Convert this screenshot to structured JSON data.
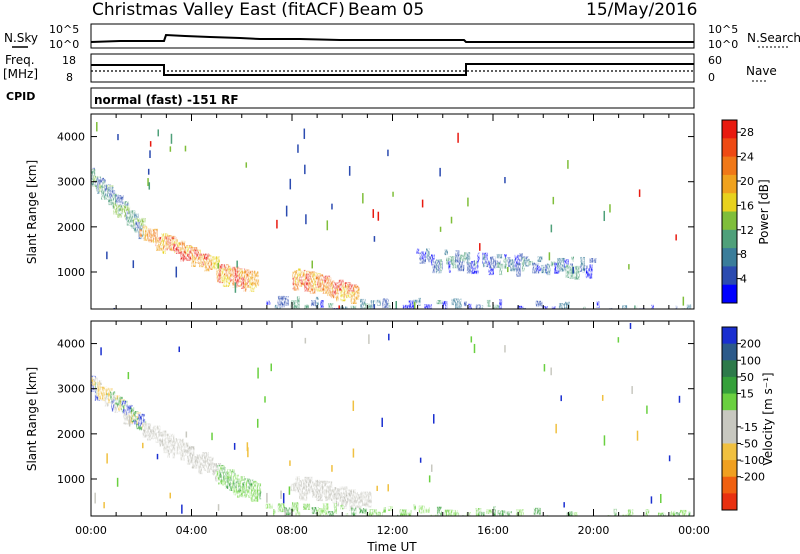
{
  "header": {
    "station": "Christmas Valley East (fitACF)",
    "beam": "Beam 05",
    "date": "15/May/2016"
  },
  "noise_panel": {
    "left_label": "N.Sky",
    "right_label": "N.Search",
    "left_ticks": [
      "10^5",
      "10^0"
    ],
    "right_ticks": [
      "10^5",
      "10^0"
    ]
  },
  "freq_panel": {
    "left_label_1": "Freq.",
    "left_label_2": "[MHz]",
    "right_label": "Nave",
    "left_ticks": [
      "18",
      "8"
    ],
    "right_ticks": [
      "60",
      "0"
    ]
  },
  "cpid_panel": {
    "label": "CPID",
    "text": "normal (fast) -151 RF"
  },
  "chart_data": [
    {
      "type": "heatmap",
      "title": "Power",
      "xlabel": "",
      "ylabel": "Slant Range [km]",
      "xlim": [
        "00:00",
        "24:00"
      ],
      "ylim": [
        180,
        4500
      ],
      "yticks": [
        "1000",
        "2000",
        "3000",
        "4000"
      ],
      "colorbar_label": "Power [dB]",
      "colorbar_ticks": [
        "4",
        "8",
        "12",
        "16",
        "20",
        "24",
        "28"
      ],
      "colorbar_colors": [
        "#0000ff",
        "#2b4bb0",
        "#3a7d9a",
        "#4fa07a",
        "#7fbe3a",
        "#e8d21e",
        "#f0a21e",
        "#f07818",
        "#ee4a14",
        "#e81a10"
      ],
      "features": [
        {
          "start": "00:00",
          "end": "02:00",
          "range_from": 3200,
          "range_to": 2000,
          "level": "medium"
        },
        {
          "start": "02:00",
          "end": "05:00",
          "range_from": 2000,
          "range_to": 1200,
          "level": "high"
        },
        {
          "start": "05:00",
          "end": "06:30",
          "range_from": 1100,
          "range_to": 900,
          "level": "high"
        },
        {
          "start": "08:00",
          "end": "10:30",
          "range_from": 1000,
          "range_to": 600,
          "level": "high"
        },
        {
          "start": "13:00",
          "end": "20:00",
          "range_from": 1400,
          "range_to": 1200,
          "level": "low"
        },
        {
          "start": "07:00",
          "end": "24:00",
          "range_from": 350,
          "range_to": 200,
          "level": "low"
        }
      ]
    },
    {
      "type": "heatmap",
      "title": "Velocity",
      "xlabel": "Time UT",
      "ylabel": "Slant Range [km]",
      "xlim": [
        "00:00",
        "24:00"
      ],
      "ylim": [
        180,
        4500
      ],
      "xticks": [
        "00:00",
        "04:00",
        "08:00",
        "12:00",
        "16:00",
        "20:00",
        "00:00"
      ],
      "yticks": [
        "1000",
        "2000",
        "3000",
        "4000"
      ],
      "colorbar_label": "Velocity [m s⁻¹]",
      "colorbar_ticks": [
        "200",
        "100",
        "50",
        "15",
        "-15",
        "-50",
        "-100",
        "-200"
      ],
      "colorbar_colors": [
        "#1a2fd0",
        "#2c5a8a",
        "#2d7a4a",
        "#35a03a",
        "#6ad040",
        "#c8c8c0",
        "#c8c8c0",
        "#f0c040",
        "#f0a020",
        "#f06010",
        "#e83010"
      ],
      "features": [
        {
          "start": "00:00",
          "end": "02:00",
          "range_from": 3200,
          "range_to": 2300,
          "velocity": "mixed"
        },
        {
          "start": "02:00",
          "end": "05:00",
          "range_from": 2200,
          "range_to": 1300,
          "velocity": "near-zero"
        },
        {
          "start": "05:00",
          "end": "06:30",
          "range_from": 1200,
          "range_to": 800,
          "velocity": "positive"
        },
        {
          "start": "08:00",
          "end": "11:00",
          "range_from": 1000,
          "range_to": 600,
          "velocity": "near-zero"
        },
        {
          "start": "07:00",
          "end": "24:00",
          "range_from": 400,
          "range_to": 180,
          "velocity": "positive"
        }
      ]
    }
  ]
}
